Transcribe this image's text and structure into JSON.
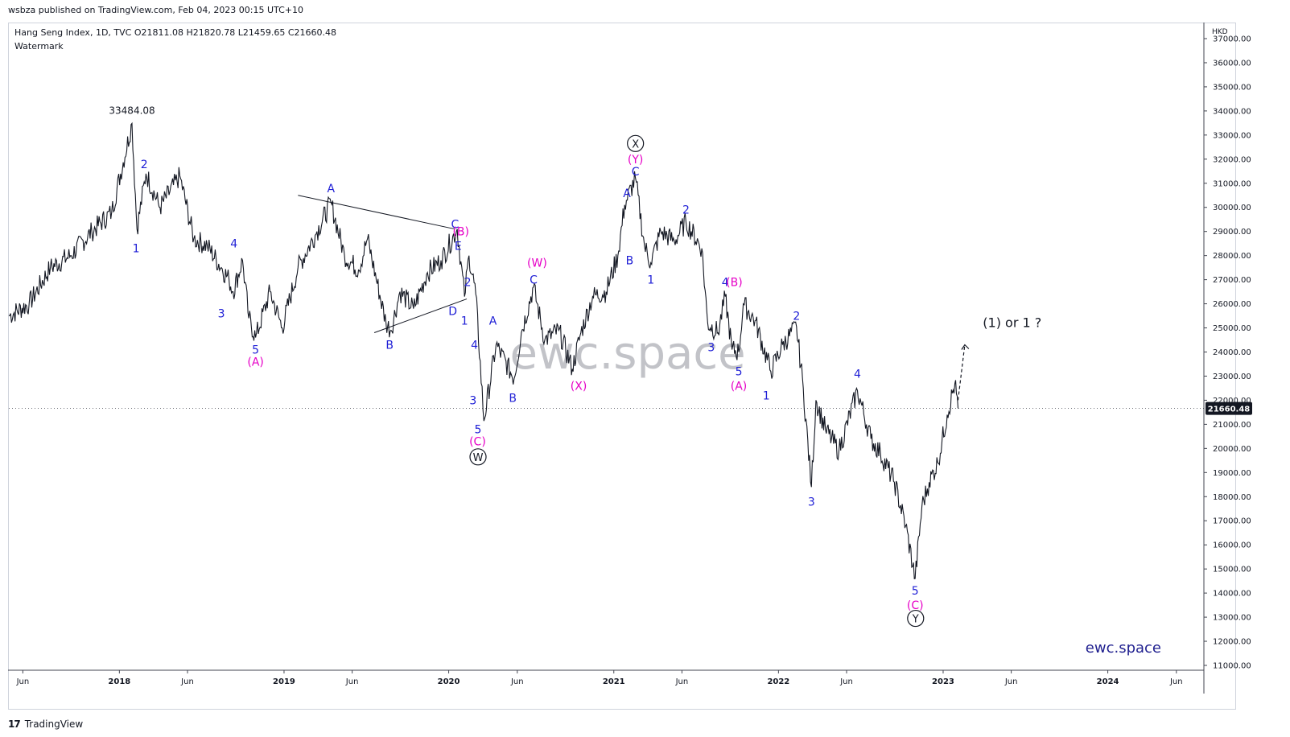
{
  "header": {
    "published": "wsbza published on TradingView.com, Feb 04, 2023 00:15 UTC+10"
  },
  "legend": {
    "line1": "Hang Seng Index, 1D, TVC  O21811.08  H21820.78  L21459.65  C21660.48",
    "line2": "Watermark"
  },
  "watermark": "ewc.space",
  "brand_label": "ewc.space",
  "footer": {
    "logo": "17",
    "name": "TradingView"
  },
  "chart_data": {
    "type": "line",
    "title": "Hang Seng Index, 1D, TVC",
    "currency": "HKD",
    "price_range": [
      11000,
      37000
    ],
    "date_range": [
      "2017-05-01",
      "2024-08-01"
    ],
    "last_price": "21660.48",
    "last_price_value": 21660.48,
    "y_ticks": [
      "11000.00",
      "12000.00",
      "13000.00",
      "14000.00",
      "15000.00",
      "16000.00",
      "17000.00",
      "18000.00",
      "19000.00",
      "20000.00",
      "21000.00",
      "22000.00",
      "23000.00",
      "24000.00",
      "25000.00",
      "26000.00",
      "27000.00",
      "28000.00",
      "29000.00",
      "30000.00",
      "31000.00",
      "32000.00",
      "33000.00",
      "34000.00",
      "35000.00",
      "36000.00",
      "37000.00"
    ],
    "x_ticks": [
      {
        "label": "Jun",
        "date": "2017-06-01"
      },
      {
        "label": "2018",
        "date": "2018-01-01"
      },
      {
        "label": "Jun",
        "date": "2018-06-01"
      },
      {
        "label": "2019",
        "date": "2019-01-01"
      },
      {
        "label": "Jun",
        "date": "2019-06-01"
      },
      {
        "label": "2020",
        "date": "2020-01-01"
      },
      {
        "label": "Jun",
        "date": "2020-06-01"
      },
      {
        "label": "2021",
        "date": "2021-01-01"
      },
      {
        "label": "Jun",
        "date": "2021-06-01"
      },
      {
        "label": "2022",
        "date": "2022-01-01"
      },
      {
        "label": "Jun",
        "date": "2022-06-01"
      },
      {
        "label": "2023",
        "date": "2023-01-01"
      },
      {
        "label": "Jun",
        "date": "2023-06-01"
      },
      {
        "label": "2024",
        "date": "2024-01-01"
      },
      {
        "label": "Jun",
        "date": "2024-06-01"
      }
    ],
    "series": [
      {
        "points": [
          [
            "2017-05-01",
            25500
          ],
          [
            "2017-06-15",
            26000
          ],
          [
            "2017-08-01",
            27500
          ],
          [
            "2017-09-15",
            28000
          ],
          [
            "2017-11-01",
            29000
          ],
          [
            "2017-12-15",
            29800
          ],
          [
            "2018-01-29",
            33484
          ],
          [
            "2018-02-09",
            29100
          ],
          [
            "2018-03-01",
            31400
          ],
          [
            "2018-04-01",
            30000
          ],
          [
            "2018-05-15",
            31300
          ],
          [
            "2018-06-15",
            28700
          ],
          [
            "2018-07-15",
            28400
          ],
          [
            "2018-08-15",
            27500
          ],
          [
            "2018-09-01",
            27000
          ],
          [
            "2018-09-10",
            26500
          ],
          [
            "2018-10-01",
            27800
          ],
          [
            "2018-10-15",
            25400
          ],
          [
            "2018-10-30",
            24600
          ],
          [
            "2018-12-01",
            26500
          ],
          [
            "2018-12-28",
            25000
          ],
          [
            "2019-02-01",
            27500
          ],
          [
            "2019-03-15",
            29000
          ],
          [
            "2019-04-15",
            30200
          ],
          [
            "2019-05-15",
            28000
          ],
          [
            "2019-06-15",
            27400
          ],
          [
            "2019-07-05",
            28700
          ],
          [
            "2019-08-15",
            25200
          ],
          [
            "2019-08-26",
            24900
          ],
          [
            "2019-09-15",
            26500
          ],
          [
            "2019-10-15",
            25800
          ],
          [
            "2019-11-15",
            27300
          ],
          [
            "2019-12-15",
            27800
          ],
          [
            "2020-01-20",
            29100
          ],
          [
            "2020-02-05",
            26300
          ],
          [
            "2020-02-15",
            28000
          ],
          [
            "2020-03-01",
            26400
          ],
          [
            "2020-03-19",
            21140
          ],
          [
            "2020-04-15",
            24300
          ],
          [
            "2020-05-25",
            22900
          ],
          [
            "2020-06-10",
            24800
          ],
          [
            "2020-07-07",
            26700
          ],
          [
            "2020-08-01",
            24500
          ],
          [
            "2020-09-01",
            24900
          ],
          [
            "2020-10-01",
            23300
          ],
          [
            "2020-10-20",
            24800
          ],
          [
            "2020-11-15",
            26300
          ],
          [
            "2020-12-15",
            26500
          ],
          [
            "2021-01-10",
            28000
          ],
          [
            "2021-01-25",
            30100
          ],
          [
            "2021-02-18",
            31200
          ],
          [
            "2021-03-10",
            28400
          ],
          [
            "2021-03-24",
            27700
          ],
          [
            "2021-04-15",
            29000
          ],
          [
            "2021-05-15",
            28600
          ],
          [
            "2021-06-10",
            29400
          ],
          [
            "2021-07-15",
            28300
          ],
          [
            "2021-07-28",
            25200
          ],
          [
            "2021-08-20",
            24800
          ],
          [
            "2021-09-05",
            26300
          ],
          [
            "2021-09-20",
            24100
          ],
          [
            "2021-10-05",
            24000
          ],
          [
            "2021-10-15",
            26000
          ],
          [
            "2021-11-10",
            25300
          ],
          [
            "2021-12-15",
            23200
          ],
          [
            "2022-01-10",
            24300
          ],
          [
            "2022-02-10",
            25050
          ],
          [
            "2022-02-25",
            22500
          ],
          [
            "2022-03-15",
            18400
          ],
          [
            "2022-03-25",
            22000
          ],
          [
            "2022-04-15",
            20800
          ],
          [
            "2022-05-15",
            19900
          ],
          [
            "2022-06-25",
            22400
          ],
          [
            "2022-07-25",
            20400
          ],
          [
            "2022-08-15",
            19800
          ],
          [
            "2022-09-15",
            18600
          ],
          [
            "2022-10-10",
            16800
          ],
          [
            "2022-10-31",
            14600
          ],
          [
            "2022-11-15",
            17600
          ],
          [
            "2022-12-01",
            18600
          ],
          [
            "2022-12-20",
            19400
          ],
          [
            "2023-01-10",
            21400
          ],
          [
            "2023-01-27",
            22700
          ],
          [
            "2023-02-03",
            21660
          ]
        ]
      }
    ],
    "peak_label": {
      "text": "33484.08",
      "date": "2018-01-29",
      "price": 33484.08
    },
    "trendlines": [
      {
        "from": [
          "2019-02-01",
          30500
        ],
        "to": [
          "2020-01-15",
          29100
        ]
      },
      {
        "from": [
          "2019-07-20",
          24800
        ],
        "to": [
          "2020-02-10",
          26200
        ]
      }
    ],
    "projection": {
      "from": [
        "2023-02-03",
        22000
      ],
      "to": [
        "2023-02-18",
        24300
      ]
    },
    "annotations": [
      {
        "text": "2",
        "date": "2018-02-25",
        "price": 31800,
        "color": "#1f1fd6"
      },
      {
        "text": "1",
        "date": "2018-02-07",
        "price": 28300,
        "color": "#1f1fd6"
      },
      {
        "text": "4",
        "date": "2018-09-12",
        "price": 28500,
        "color": "#1f1fd6"
      },
      {
        "text": "3",
        "date": "2018-08-15",
        "price": 25600,
        "color": "#1f1fd6"
      },
      {
        "text": "5",
        "date": "2018-10-30",
        "price": 24100,
        "color": "#1f1fd6"
      },
      {
        "text": "(A)",
        "date": "2018-10-30",
        "price": 23600,
        "color": "#e600c7"
      },
      {
        "text": "A",
        "date": "2019-04-15",
        "price": 30800,
        "color": "#1f1fd6"
      },
      {
        "text": "B",
        "date": "2019-08-23",
        "price": 24300,
        "color": "#1f1fd6"
      },
      {
        "text": "C",
        "date": "2020-01-15",
        "price": 29300,
        "color": "#1f1fd6"
      },
      {
        "text": "(B)",
        "date": "2020-01-28",
        "price": 29000,
        "color": "#e600c7"
      },
      {
        "text": "E",
        "date": "2020-01-22",
        "price": 28400,
        "color": "#1f1fd6"
      },
      {
        "text": "2",
        "date": "2020-02-12",
        "price": 26900,
        "color": "#1f1fd6"
      },
      {
        "text": "D",
        "date": "2020-01-10",
        "price": 25700,
        "color": "#1f1fd6"
      },
      {
        "text": "1",
        "date": "2020-02-05",
        "price": 25300,
        "color": "#1f1fd6"
      },
      {
        "text": "A",
        "date": "2020-04-08",
        "price": 25300,
        "color": "#1f1fd6"
      },
      {
        "text": "4",
        "date": "2020-02-27",
        "price": 24300,
        "color": "#1f1fd6"
      },
      {
        "text": "3",
        "date": "2020-02-24",
        "price": 22000,
        "color": "#1f1fd6"
      },
      {
        "text": "B",
        "date": "2020-05-22",
        "price": 22100,
        "color": "#1f1fd6"
      },
      {
        "text": "5",
        "date": "2020-03-06",
        "price": 20800,
        "color": "#1f1fd6"
      },
      {
        "text": "(C)",
        "date": "2020-03-05",
        "price": 20300,
        "color": "#e600c7"
      },
      {
        "text": "W",
        "date": "2020-03-06",
        "price": 19650,
        "color": "#131722",
        "circle": true
      },
      {
        "text": "(W)",
        "date": "2020-07-15",
        "price": 27700,
        "color": "#e600c7"
      },
      {
        "text": "C",
        "date": "2020-07-07",
        "price": 27000,
        "color": "#1f1fd6"
      },
      {
        "text": "(X)",
        "date": "2020-10-15",
        "price": 22600,
        "color": "#e600c7"
      },
      {
        "text": "X",
        "date": "2021-02-18",
        "price": 32650,
        "color": "#131722",
        "circle": true
      },
      {
        "text": "(Y)",
        "date": "2021-02-18",
        "price": 32000,
        "color": "#e600c7"
      },
      {
        "text": "C",
        "date": "2021-02-18",
        "price": 31500,
        "color": "#1f1fd6"
      },
      {
        "text": "A",
        "date": "2021-01-30",
        "price": 30600,
        "color": "#1f1fd6"
      },
      {
        "text": "B",
        "date": "2021-02-05",
        "price": 27800,
        "color": "#1f1fd6"
      },
      {
        "text": "1",
        "date": "2021-03-24",
        "price": 27000,
        "color": "#1f1fd6"
      },
      {
        "text": "2",
        "date": "2021-06-10",
        "price": 29900,
        "color": "#1f1fd6"
      },
      {
        "text": "4",
        "date": "2021-09-05",
        "price": 26900,
        "color": "#1f1fd6"
      },
      {
        "text": "(B)",
        "date": "2021-09-25",
        "price": 26900,
        "color": "#e600c7"
      },
      {
        "text": "3",
        "date": "2021-08-05",
        "price": 24200,
        "color": "#1f1fd6"
      },
      {
        "text": "5",
        "date": "2021-10-05",
        "price": 23200,
        "color": "#1f1fd6"
      },
      {
        "text": "(A)",
        "date": "2021-10-05",
        "price": 22600,
        "color": "#e600c7"
      },
      {
        "text": "1",
        "date": "2021-12-05",
        "price": 22200,
        "color": "#1f1fd6"
      },
      {
        "text": "2",
        "date": "2022-02-10",
        "price": 25500,
        "color": "#1f1fd6"
      },
      {
        "text": "3",
        "date": "2022-03-15",
        "price": 17800,
        "color": "#1f1fd6"
      },
      {
        "text": "4",
        "date": "2022-06-25",
        "price": 23100,
        "color": "#1f1fd6"
      },
      {
        "text": "5",
        "date": "2022-10-31",
        "price": 14100,
        "color": "#1f1fd6"
      },
      {
        "text": "(C)",
        "date": "2022-10-31",
        "price": 13500,
        "color": "#e600c7"
      },
      {
        "text": "Y",
        "date": "2022-11-01",
        "price": 12950,
        "color": "#131722",
        "circle": true
      },
      {
        "text": "(1) or 1 ?",
        "date": "2023-03-30",
        "price": 25200,
        "color": "#131722",
        "large": true
      }
    ]
  }
}
